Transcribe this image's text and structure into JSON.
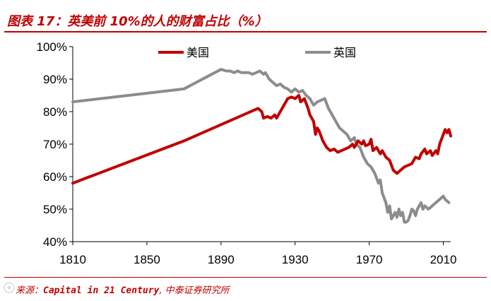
{
  "title": "图表 17：英美前 10%的人的财富占比（%）",
  "footer": {
    "prefix": "来源：",
    "source": "Capital in 21 Century",
    "suffix": ", 中泰证券研究所"
  },
  "colors": {
    "accent": "#c00000",
    "us": "#c00000",
    "uk": "#8c8c8c"
  },
  "chart_data": {
    "type": "line",
    "title": "",
    "xlabel": "",
    "ylabel": "",
    "xlim": [
      1810,
      2014
    ],
    "ylim": [
      40,
      100
    ],
    "x_ticks": [
      1810,
      1850,
      1890,
      1930,
      1970,
      2010
    ],
    "y_ticks": [
      40,
      50,
      60,
      70,
      80,
      90,
      100
    ],
    "y_tick_labels": [
      "40%",
      "50%",
      "60%",
      "70%",
      "80%",
      "90%",
      "100%"
    ],
    "grid": false,
    "legend": "top",
    "series": [
      {
        "name": "美国",
        "color": "#c00000",
        "points": [
          [
            1810,
            58
          ],
          [
            1870,
            71
          ],
          [
            1908,
            80.5
          ],
          [
            1910,
            81
          ],
          [
            1912,
            80
          ],
          [
            1913,
            78
          ],
          [
            1915,
            78.5
          ],
          [
            1917,
            78
          ],
          [
            1919,
            79
          ],
          [
            1920,
            78
          ],
          [
            1922,
            80
          ],
          [
            1924,
            82
          ],
          [
            1926,
            84
          ],
          [
            1928,
            84.5
          ],
          [
            1930,
            84
          ],
          [
            1932,
            85
          ],
          [
            1933,
            83
          ],
          [
            1935,
            84
          ],
          [
            1937,
            81
          ],
          [
            1938,
            79
          ],
          [
            1940,
            77
          ],
          [
            1941,
            73
          ],
          [
            1942,
            75
          ],
          [
            1943,
            74
          ],
          [
            1945,
            71
          ],
          [
            1947,
            69
          ],
          [
            1949,
            68
          ],
          [
            1951,
            68.5
          ],
          [
            1953,
            67.5
          ],
          [
            1955,
            68
          ],
          [
            1957,
            68.5
          ],
          [
            1959,
            69
          ],
          [
            1961,
            70
          ],
          [
            1962,
            69
          ],
          [
            1964,
            71
          ],
          [
            1966,
            70
          ],
          [
            1967,
            71
          ],
          [
            1968,
            69.5
          ],
          [
            1970,
            70
          ],
          [
            1971,
            71.5
          ],
          [
            1972,
            68
          ],
          [
            1974,
            69
          ],
          [
            1976,
            67
          ],
          [
            1977,
            68
          ],
          [
            1979,
            66
          ],
          [
            1981,
            65
          ],
          [
            1983,
            62
          ],
          [
            1985,
            61
          ],
          [
            1987,
            62
          ],
          [
            1989,
            63
          ],
          [
            1991,
            63.5
          ],
          [
            1993,
            64
          ],
          [
            1995,
            66
          ],
          [
            1997,
            65.5
          ],
          [
            1998,
            67
          ],
          [
            2000,
            68.5
          ],
          [
            2001,
            67
          ],
          [
            2003,
            68
          ],
          [
            2004,
            66.5
          ],
          [
            2006,
            68
          ],
          [
            2007,
            67
          ],
          [
            2008,
            70
          ],
          [
            2010,
            73
          ],
          [
            2011,
            74.5
          ],
          [
            2012,
            73.5
          ],
          [
            2013,
            74.5
          ],
          [
            2014,
            72.5
          ]
        ]
      },
      {
        "name": "英国",
        "color": "#8c8c8c",
        "points": [
          [
            1810,
            83
          ],
          [
            1870,
            87
          ],
          [
            1890,
            93
          ],
          [
            1893,
            92.5
          ],
          [
            1895,
            92.5
          ],
          [
            1897,
            92
          ],
          [
            1899,
            92.5
          ],
          [
            1901,
            92
          ],
          [
            1903,
            92
          ],
          [
            1905,
            92
          ],
          [
            1907,
            91.5
          ],
          [
            1909,
            92
          ],
          [
            1911,
            92.5
          ],
          [
            1913,
            91.5
          ],
          [
            1914,
            92
          ],
          [
            1916,
            90
          ],
          [
            1918,
            89
          ],
          [
            1920,
            88
          ],
          [
            1922,
            88.5
          ],
          [
            1924,
            87.5
          ],
          [
            1926,
            87
          ],
          [
            1928,
            86
          ],
          [
            1930,
            87
          ],
          [
            1932,
            86
          ],
          [
            1934,
            86.5
          ],
          [
            1936,
            85
          ],
          [
            1938,
            84
          ],
          [
            1940,
            82
          ],
          [
            1942,
            83
          ],
          [
            1944,
            83.5
          ],
          [
            1946,
            84
          ],
          [
            1948,
            81
          ],
          [
            1950,
            79
          ],
          [
            1952,
            77
          ],
          [
            1954,
            75
          ],
          [
            1956,
            74
          ],
          [
            1958,
            73
          ],
          [
            1960,
            71
          ],
          [
            1962,
            72
          ],
          [
            1963,
            70
          ],
          [
            1965,
            69
          ],
          [
            1967,
            66
          ],
          [
            1969,
            64
          ],
          [
            1971,
            63
          ],
          [
            1973,
            61
          ],
          [
            1975,
            58
          ],
          [
            1976,
            59
          ],
          [
            1977,
            55
          ],
          [
            1979,
            52
          ],
          [
            1980,
            49
          ],
          [
            1981,
            51
          ],
          [
            1982,
            47
          ],
          [
            1984,
            49
          ],
          [
            1985,
            47.5
          ],
          [
            1986,
            50
          ],
          [
            1987,
            48
          ],
          [
            1988,
            49
          ],
          [
            1989,
            46
          ],
          [
            1990,
            46
          ],
          [
            1991,
            46.5
          ],
          [
            1992,
            48
          ],
          [
            1993,
            50
          ],
          [
            1994,
            49.5
          ],
          [
            1995,
            48
          ],
          [
            1996,
            50
          ],
          [
            1997,
            51
          ],
          [
            1998,
            52
          ],
          [
            1999,
            50
          ],
          [
            2000,
            51
          ],
          [
            2002,
            50
          ],
          [
            2004,
            51
          ],
          [
            2006,
            52
          ],
          [
            2008,
            53
          ],
          [
            2010,
            54
          ],
          [
            2011,
            53
          ],
          [
            2012,
            52.5
          ],
          [
            2013,
            52
          ]
        ]
      }
    ]
  }
}
